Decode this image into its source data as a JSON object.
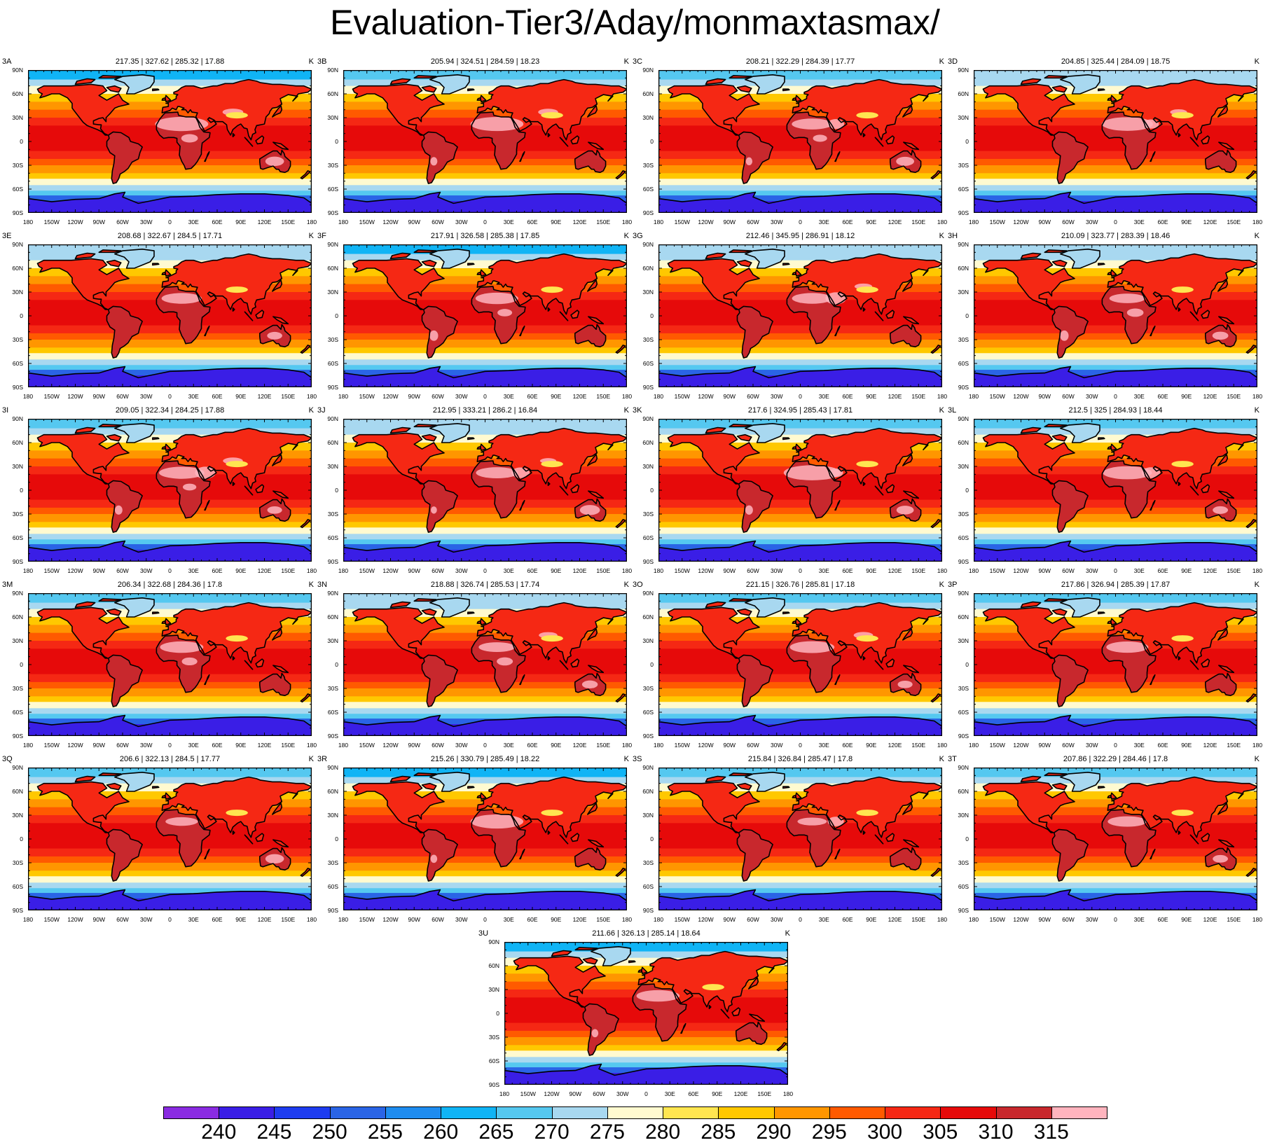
{
  "chart_data": {
    "type": "heatmap",
    "title": "Evaluation-Tier3/Aday/monmaxtasmax/",
    "units": "K",
    "stat_separator": " | ",
    "lat_ticks": [
      "90N",
      "60N",
      "30N",
      "0",
      "30S",
      "60S",
      "90S"
    ],
    "lon_ticks": [
      "180",
      "150W",
      "120W",
      "90W",
      "60W",
      "30W",
      "0",
      "30E",
      "60E",
      "90E",
      "120E",
      "150E",
      "180"
    ],
    "colorbar": {
      "levels": [
        "240",
        "245",
        "250",
        "255",
        "260",
        "265",
        "270",
        "275",
        "280",
        "285",
        "290",
        "295",
        "300",
        "305",
        "310",
        "315"
      ],
      "colors": [
        "#8a2be2",
        "#3a1ee6",
        "#1e3cf0",
        "#2a64e6",
        "#1e8cf0",
        "#10b4f5",
        "#55c8f0",
        "#a8d8f0",
        "#fffad0",
        "#ffe650",
        "#ffc800",
        "#ff9600",
        "#ff5a00",
        "#f52814",
        "#e60a0a",
        "#c8282d",
        "#ffb4be"
      ]
    },
    "panels": [
      {
        "label": "3A",
        "min": "217.35",
        "max": "327.62",
        "mean": "285.32",
        "std": "17.88"
      },
      {
        "label": "3B",
        "min": "205.94",
        "max": "324.51",
        "mean": "284.59",
        "std": "18.23"
      },
      {
        "label": "3C",
        "min": "208.21",
        "max": "322.29",
        "mean": "284.39",
        "std": "17.77"
      },
      {
        "label": "3D",
        "min": "204.85",
        "max": "325.44",
        "mean": "284.09",
        "std": "18.75"
      },
      {
        "label": "3E",
        "min": "208.68",
        "max": "322.67",
        "mean": "284.5",
        "std": "17.71"
      },
      {
        "label": "3F",
        "min": "217.91",
        "max": "326.58",
        "mean": "285.38",
        "std": "17.85"
      },
      {
        "label": "3G",
        "min": "212.46",
        "max": "345.95",
        "mean": "286.91",
        "std": "18.12"
      },
      {
        "label": "3H",
        "min": "210.09",
        "max": "323.77",
        "mean": "283.39",
        "std": "18.46"
      },
      {
        "label": "3I",
        "min": "209.05",
        "max": "322.34",
        "mean": "284.25",
        "std": "17.88"
      },
      {
        "label": "3J",
        "min": "212.95",
        "max": "333.21",
        "mean": "286.2",
        "std": "16.84"
      },
      {
        "label": "3K",
        "min": "217.6",
        "max": "324.95",
        "mean": "285.43",
        "std": "17.81"
      },
      {
        "label": "3L",
        "min": "212.5",
        "max": "325",
        "mean": "284.93",
        "std": "18.44"
      },
      {
        "label": "3M",
        "min": "206.34",
        "max": "322.68",
        "mean": "284.36",
        "std": "17.8"
      },
      {
        "label": "3N",
        "min": "218.88",
        "max": "326.74",
        "mean": "285.53",
        "std": "17.74"
      },
      {
        "label": "3O",
        "min": "221.15",
        "max": "326.76",
        "mean": "285.81",
        "std": "17.18"
      },
      {
        "label": "3P",
        "min": "217.86",
        "max": "326.94",
        "mean": "285.39",
        "std": "17.87"
      },
      {
        "label": "3Q",
        "min": "206.6",
        "max": "322.13",
        "mean": "284.5",
        "std": "17.77"
      },
      {
        "label": "3R",
        "min": "215.26",
        "max": "330.79",
        "mean": "285.49",
        "std": "18.22"
      },
      {
        "label": "3S",
        "min": "215.84",
        "max": "326.84",
        "mean": "285.47",
        "std": "17.8"
      },
      {
        "label": "3T",
        "min": "207.86",
        "max": "322.29",
        "mean": "284.46",
        "std": "17.8"
      },
      {
        "label": "3U",
        "min": "211.66",
        "max": "326.13",
        "mean": "285.14",
        "std": "18.64"
      }
    ]
  }
}
